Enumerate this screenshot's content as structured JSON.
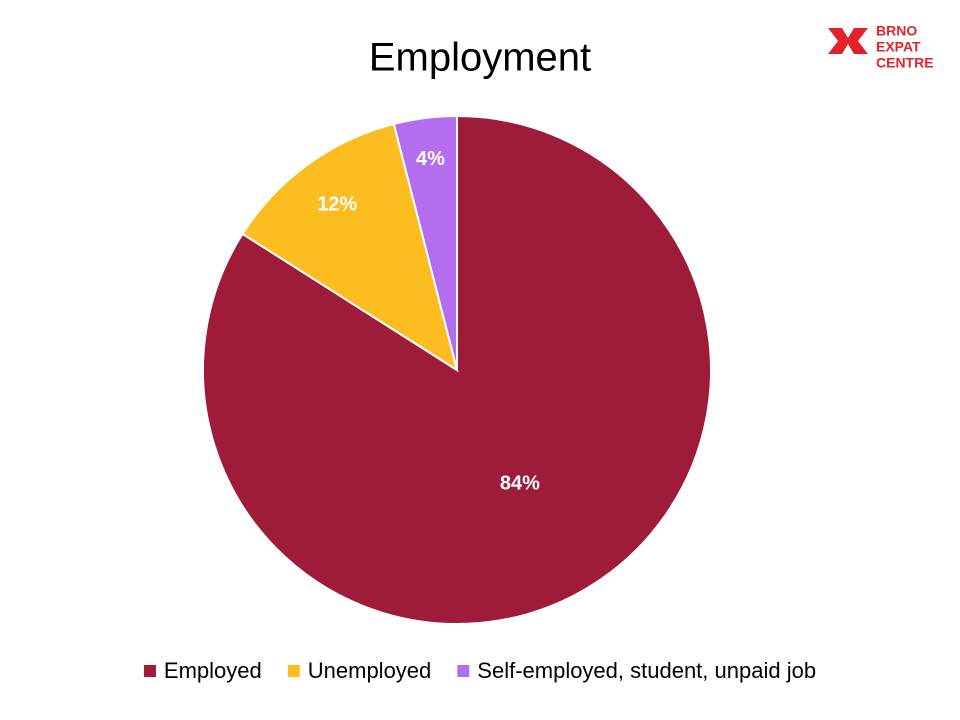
{
  "chart_data": {
    "type": "pie",
    "title": "Employment",
    "categories": [
      "Employed",
      "Unemployed",
      "Self-employed, student, unpaid job"
    ],
    "values": [
      84,
      12,
      4
    ],
    "value_labels": [
      "84%",
      "12%",
      "4%"
    ],
    "colors": [
      "#9e1b3a",
      "#fbbd1f",
      "#b36ef0"
    ],
    "legend": "bottom"
  },
  "logo": {
    "lines": [
      "BRNO",
      "EXPAT",
      "CENTRE"
    ]
  }
}
